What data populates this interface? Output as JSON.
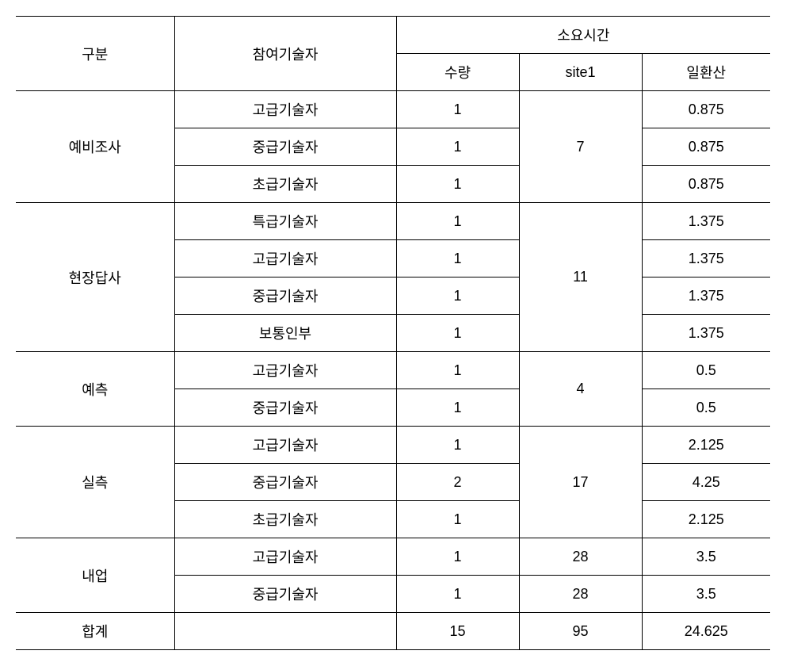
{
  "table": {
    "type": "table",
    "background_color": "#ffffff",
    "border_color": "#000000",
    "text_color": "#000000",
    "font_size": 18,
    "header": {
      "gubun": "구분",
      "tech": "참여기술자",
      "time_group": "소요시간",
      "qty": "수량",
      "site1": "site1",
      "conv": "일환산"
    },
    "groups": [
      {
        "label": "예비조사",
        "site1": "7",
        "rows": [
          {
            "tech": "고급기술자",
            "qty": "1",
            "conv": "0.875"
          },
          {
            "tech": "중급기술자",
            "qty": "1",
            "conv": "0.875"
          },
          {
            "tech": "초급기술자",
            "qty": "1",
            "conv": "0.875"
          }
        ]
      },
      {
        "label": "현장답사",
        "site1": "11",
        "rows": [
          {
            "tech": "특급기술자",
            "qty": "1",
            "conv": "1.375"
          },
          {
            "tech": "고급기술자",
            "qty": "1",
            "conv": "1.375"
          },
          {
            "tech": "중급기술자",
            "qty": "1",
            "conv": "1.375"
          },
          {
            "tech": "보통인부",
            "qty": "1",
            "conv": "1.375"
          }
        ]
      },
      {
        "label": "예측",
        "site1": "4",
        "rows": [
          {
            "tech": "고급기술자",
            "qty": "1",
            "conv": "0.5"
          },
          {
            "tech": "중급기술자",
            "qty": "1",
            "conv": "0.5"
          }
        ]
      },
      {
        "label": "실측",
        "site1": "17",
        "rows": [
          {
            "tech": "고급기술자",
            "qty": "1",
            "conv": "2.125"
          },
          {
            "tech": "중급기술자",
            "qty": "2",
            "conv": "4.25"
          },
          {
            "tech": "초급기술자",
            "qty": "1",
            "conv": "2.125"
          }
        ]
      },
      {
        "label": "내업",
        "site1_per_row": true,
        "rows": [
          {
            "tech": "고급기술자",
            "qty": "1",
            "site1": "28",
            "conv": "3.5"
          },
          {
            "tech": "중급기술자",
            "qty": "1",
            "site1": "28",
            "conv": "3.5"
          }
        ]
      }
    ],
    "total": {
      "label": "합계",
      "tech": "",
      "qty": "15",
      "site1": "95",
      "conv": "24.625"
    }
  }
}
